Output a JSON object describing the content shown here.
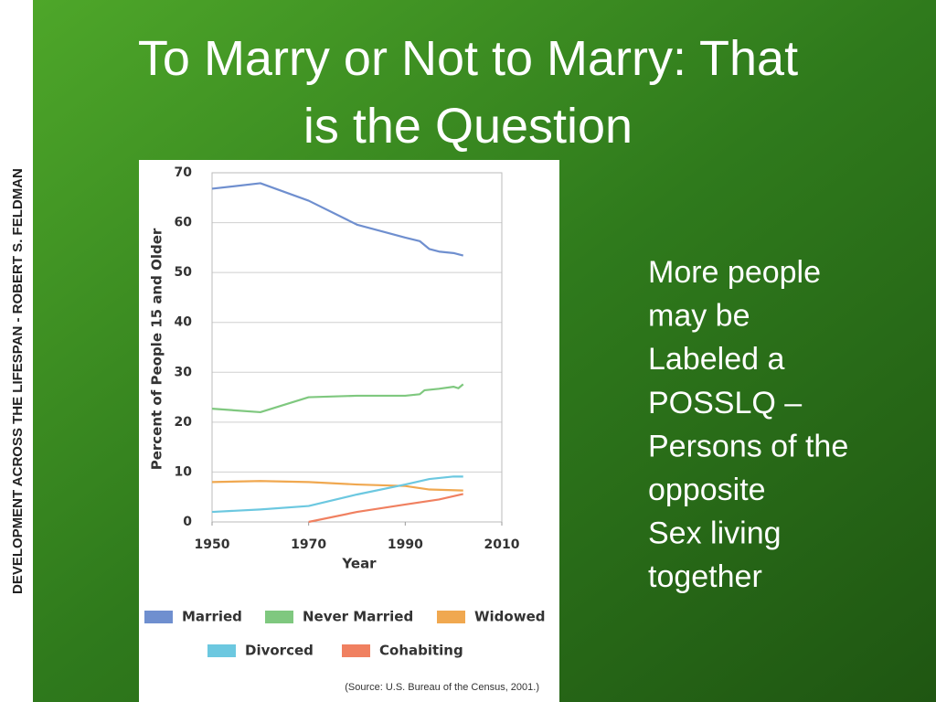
{
  "slide": {
    "title_lines": [
      "To Marry or Not to Marry: That",
      "is the Question"
    ],
    "side_text": "DEVELOPMENT ACROSS THE LIFESPAN - ROBERT S. FELDMAN",
    "body_lines": [
      "More people",
      "may be",
      "Labeled a",
      "POSSLQ –",
      "Persons of the",
      "opposite",
      "Sex living",
      "together"
    ]
  },
  "chart_data": {
    "type": "line",
    "xlabel": "Year",
    "ylabel": "Percent of People 15 and Older",
    "source": "(Source: U.S. Bureau of the Census, 2001.)",
    "xlim": [
      1950,
      2010
    ],
    "xticks": [
      1950,
      1970,
      1990,
      2010
    ],
    "ylim": [
      0,
      70
    ],
    "yticks": [
      0,
      10,
      20,
      30,
      40,
      50,
      60,
      70
    ],
    "grid": true,
    "series": [
      {
        "name": "Married",
        "color": "#6f8fcf",
        "x": [
          1950,
          1960,
          1970,
          1980,
          1990,
          1993,
          1995,
          1997,
          2000,
          2002
        ],
        "values": [
          66.8,
          67.9,
          64.4,
          59.6,
          57.0,
          56.3,
          54.7,
          54.2,
          53.9,
          53.4
        ]
      },
      {
        "name": "Never Married",
        "color": "#7fc87f",
        "x": [
          1950,
          1960,
          1970,
          1980,
          1990,
          1993,
          1994,
          1997,
          2000,
          2001,
          2002
        ],
        "values": [
          22.7,
          22.0,
          25.0,
          25.3,
          25.3,
          25.6,
          26.4,
          26.7,
          27.1,
          26.8,
          27.6
        ]
      },
      {
        "name": "Widowed",
        "color": "#f0a850",
        "x": [
          1950,
          1960,
          1970,
          1980,
          1990,
          1995,
          2002
        ],
        "values": [
          8.0,
          8.2,
          8.0,
          7.5,
          7.2,
          6.5,
          6.3
        ]
      },
      {
        "name": "Divorced",
        "color": "#6cc8e0",
        "x": [
          1950,
          1960,
          1970,
          1980,
          1990,
          1995,
          2000,
          2002
        ],
        "values": [
          2.0,
          2.5,
          3.2,
          5.5,
          7.5,
          8.6,
          9.1,
          9.1
        ]
      },
      {
        "name": "Cohabiting",
        "color": "#f08060",
        "x": [
          1970,
          1980,
          1990,
          1997,
          2002
        ],
        "values": [
          0.0,
          2.0,
          3.5,
          4.5,
          5.6
        ]
      }
    ]
  }
}
